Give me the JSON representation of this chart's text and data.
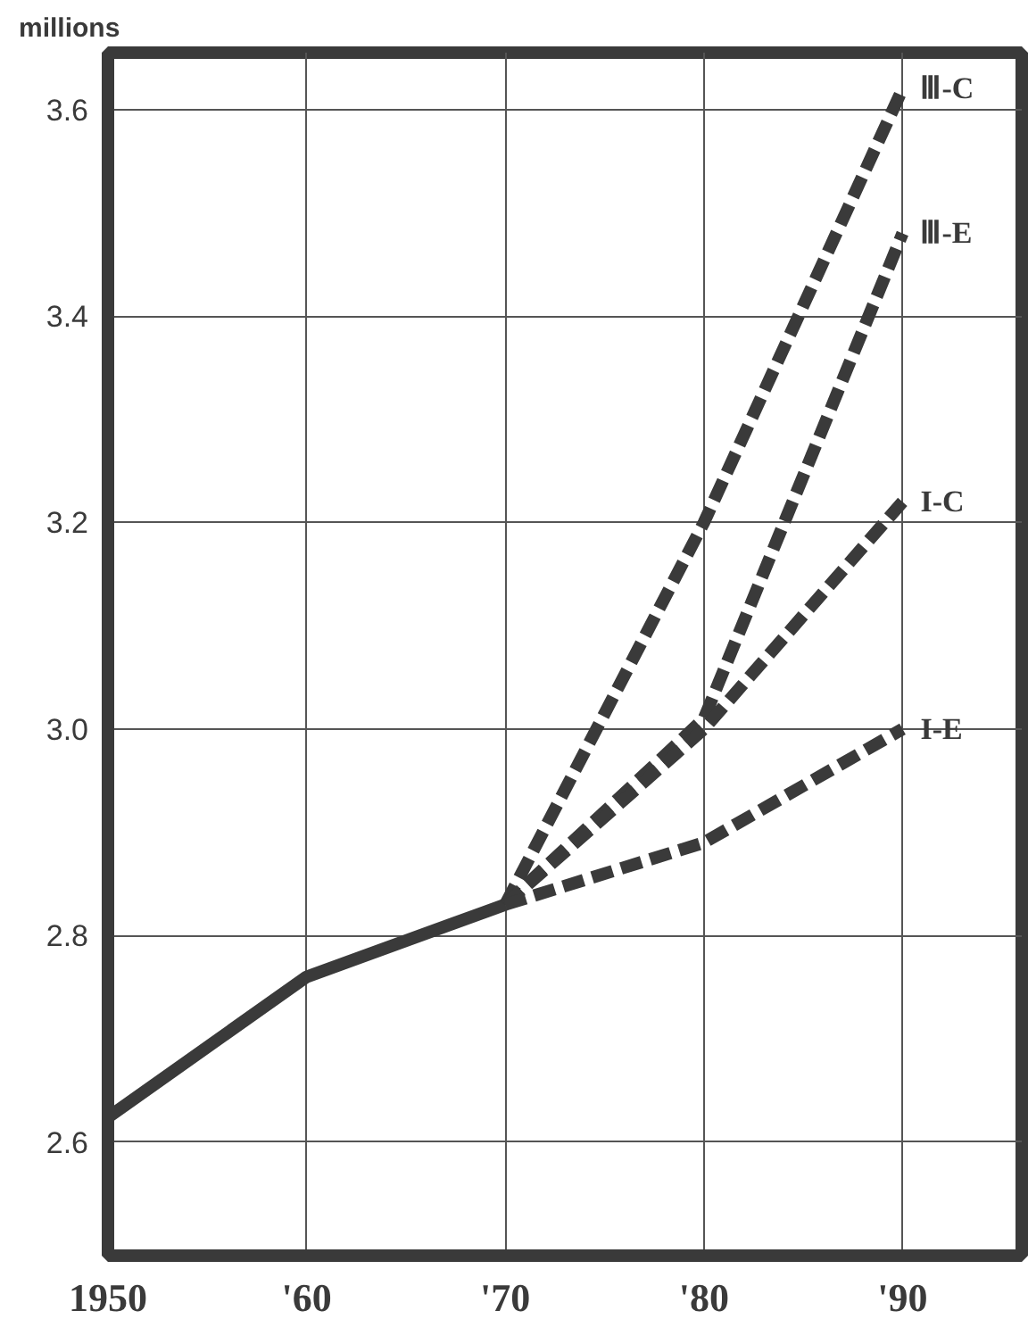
{
  "chart_data": {
    "type": "line",
    "ylabel": "millions",
    "xlim": [
      1950,
      1996
    ],
    "ylim": [
      2.49,
      3.655
    ],
    "xticks": [
      1950,
      {
        "value": 1960,
        "label": "'60"
      },
      {
        "value": 1970,
        "label": "'70"
      },
      {
        "value": 1980,
        "label": "'80"
      },
      {
        "value": 1990,
        "label": "'90"
      }
    ],
    "yticks": [
      2.6,
      2.8,
      {
        "value": 3.0,
        "label": "3.0"
      },
      3.2,
      3.4,
      3.6
    ],
    "grid": true,
    "marker": "none",
    "series": [
      {
        "color": "#3a3a3a",
        "line_style": "solid",
        "x": [
          1950,
          1960,
          1970
        ],
        "values": [
          2.624,
          2.76,
          2.83
        ]
      },
      {
        "name": "Ⅲ-C",
        "color": "#3a3a3a",
        "line_style": "dashed",
        "x": [
          1970,
          1980,
          1990
        ],
        "values": [
          2.83,
          3.2,
          3.62
        ]
      },
      {
        "name": "Ⅲ-E",
        "color": "#3a3a3a",
        "line_style": "dashed",
        "x": [
          1970,
          1980,
          1990
        ],
        "values": [
          2.83,
          3.01,
          3.48
        ]
      },
      {
        "name": "I-C",
        "color": "#3a3a3a",
        "line_style": "dashed",
        "x": [
          1970,
          1980,
          1990
        ],
        "values": [
          2.83,
          3.0,
          3.22
        ]
      },
      {
        "name": "I-E",
        "color": "#3a3a3a",
        "line_style": "dashed",
        "x": [
          1970,
          1980,
          1990
        ],
        "values": [
          2.83,
          2.89,
          3.0
        ]
      }
    ]
  }
}
